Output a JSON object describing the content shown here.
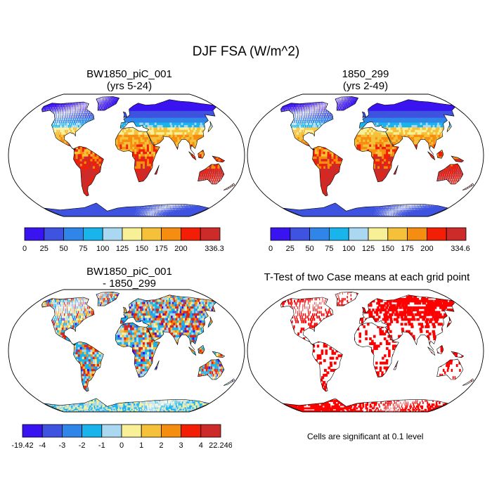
{
  "figure": {
    "title": "DJF FSA (W/m^2)",
    "footnote": "Cells are significant at 0.1 level"
  },
  "chart_data": [
    {
      "type": "heatmap",
      "kind": "world-map",
      "projection": "Robinson",
      "title": "BW1850_piC_001",
      "subtitle": "(yrs 5-24)",
      "colorbar": {
        "colors": [
          "#3a14f0",
          "#3e53e0",
          "#2f86e8",
          "#19b4ec",
          "#a9d8f0",
          "#f8f097",
          "#f6c13a",
          "#f58e10",
          "#f21e06",
          "#cd2a2a"
        ],
        "labels": [
          "0",
          "25",
          "50",
          "75",
          "100",
          "125",
          "150",
          "175",
          "200",
          "336.3"
        ]
      },
      "pattern": [
        {
          "region": "high northern latitudes",
          "level": 0
        },
        {
          "region": "northern mid latitudes",
          "level": 2
        },
        {
          "region": "subtropics",
          "level": 6
        },
        {
          "region": "tropics",
          "level": 7
        },
        {
          "region": "southern hemisphere continents",
          "level": 9
        },
        {
          "region": "Antarctica",
          "level": 1
        }
      ]
    },
    {
      "type": "heatmap",
      "kind": "world-map",
      "projection": "Robinson",
      "title": "1850_299",
      "subtitle": "(yrs 2-49)",
      "colorbar": {
        "colors": [
          "#3a14f0",
          "#3e53e0",
          "#2f86e8",
          "#19b4ec",
          "#a9d8f0",
          "#f8f097",
          "#f6c13a",
          "#f58e10",
          "#f21e06",
          "#cd2a2a"
        ],
        "labels": [
          "0",
          "25",
          "50",
          "75",
          "100",
          "125",
          "150",
          "175",
          "200",
          "334.6"
        ]
      },
      "pattern": [
        {
          "region": "high northern latitudes",
          "level": 0
        },
        {
          "region": "northern mid latitudes",
          "level": 2
        },
        {
          "region": "subtropics",
          "level": 6
        },
        {
          "region": "tropics",
          "level": 7
        },
        {
          "region": "southern hemisphere continents",
          "level": 9
        },
        {
          "region": "Antarctica",
          "level": 1
        }
      ]
    },
    {
      "type": "heatmap",
      "kind": "world-map-difference",
      "projection": "Robinson",
      "title": "BW1850_piC_001",
      "subtitle": "- 1850_299",
      "colorbar": {
        "colors": [
          "#3a14f0",
          "#3e53e0",
          "#2f86e8",
          "#19b4ec",
          "#a9d8f0",
          "#f8f097",
          "#f6c13a",
          "#f58e10",
          "#f21e06",
          "#cd2a2a"
        ],
        "labels": [
          "-19.42",
          "-4",
          "-3",
          "-2",
          "-1",
          "0",
          "1",
          "2",
          "3",
          "4",
          "22.246"
        ]
      }
    },
    {
      "type": "heatmap",
      "kind": "significance-mask",
      "projection": "Robinson",
      "title": "T-Test of two Case means at each grid point",
      "mask_color": "#ff0000"
    }
  ]
}
